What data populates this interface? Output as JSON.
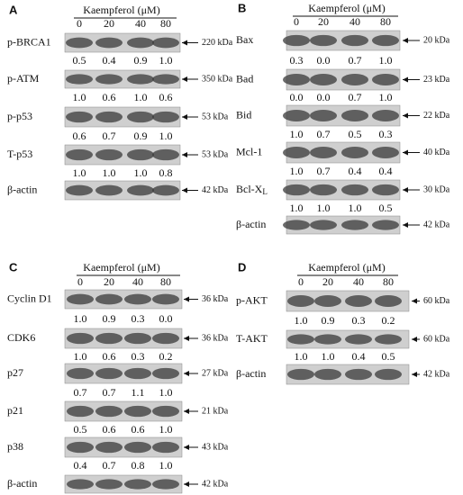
{
  "panels": [
    {
      "label": "A",
      "treatment": "Kaempferol (μM)",
      "doses": [
        "0",
        "20",
        "40",
        "80"
      ],
      "blots": [
        {
          "name": "p-BRCA1",
          "size": "220 kDa",
          "values": [
            "0.5",
            "0.4",
            "0.9",
            "1.0"
          ]
        },
        {
          "name": "p-ATM",
          "size": "350 kDa",
          "values": [
            "1.0",
            "0.6",
            "1.0",
            "0.6"
          ]
        },
        {
          "name": "p-p53",
          "size": "53 kDa",
          "values": [
            "0.6",
            "0.7",
            "0.9",
            "1.0"
          ]
        },
        {
          "name": "T-p53",
          "size": "53 kDa",
          "values": [
            "1.0",
            "1.0",
            "1.0",
            "0.8"
          ]
        },
        {
          "name": "β-actin",
          "size": "42 kDa"
        }
      ]
    },
    {
      "label": "B",
      "treatment": "Kaempferol (μM)",
      "doses": [
        "0",
        "20",
        "40",
        "80"
      ],
      "blots": [
        {
          "name": "Bax",
          "size": "20 kDa",
          "values": [
            "0.3",
            "0.0",
            "0.7",
            "1.0"
          ]
        },
        {
          "name": "Bad",
          "size": "23 kDa",
          "values": [
            "0.0",
            "0.0",
            "0.7",
            "1.0"
          ]
        },
        {
          "name": "Bid",
          "size": "22 kDa",
          "values": [
            "1.0",
            "0.7",
            "0.5",
            "0.3"
          ]
        },
        {
          "name": "Mcl-1",
          "size": "40 kDa",
          "values": [
            "1.0",
            "0.7",
            "0.4",
            "0.4"
          ]
        },
        {
          "name": "Bcl-X",
          "name_sub": "L",
          "size": "30 kDa",
          "values": [
            "1.0",
            "1.0",
            "1.0",
            "0.5"
          ]
        },
        {
          "name": "β-actin",
          "size": "42 kDa"
        }
      ]
    },
    {
      "label": "C",
      "treatment": "Kaempferol (μM)",
      "doses": [
        "0",
        "20",
        "40",
        "80"
      ],
      "blots": [
        {
          "name": "Cyclin D1",
          "size": "36 kDa",
          "values": [
            "1.0",
            "0.9",
            "0.3",
            "0.0"
          ]
        },
        {
          "name": "CDK6",
          "size": "36 kDa",
          "values": [
            "1.0",
            "0.6",
            "0.3",
            "0.2"
          ]
        },
        {
          "name": "p27",
          "size": "27 kDa",
          "values": [
            "0.7",
            "0.7",
            "1.1",
            "1.0"
          ]
        },
        {
          "name": "p21",
          "size": "21 kDa",
          "values": [
            "0.5",
            "0.6",
            "0.6",
            "1.0"
          ]
        },
        {
          "name": "p38",
          "size": "43 kDa",
          "values": [
            "0.4",
            "0.7",
            "0.8",
            "1.0"
          ]
        },
        {
          "name": "β-actin",
          "size": "42 kDa"
        }
      ]
    },
    {
      "label": "D",
      "treatment": "Kaempferol (μM)",
      "doses": [
        "0",
        "20",
        "40",
        "80"
      ],
      "blots": [
        {
          "name": "p-AKT",
          "size": "60 kDa",
          "values": [
            "1.0",
            "0.9",
            "0.3",
            "0.2"
          ]
        },
        {
          "name": "T-AKT",
          "size": "60 kDa",
          "values": [
            "1.0",
            "1.0",
            "0.4",
            "0.5"
          ]
        },
        {
          "name": "β-actin",
          "size": "42 kDa"
        }
      ]
    }
  ]
}
